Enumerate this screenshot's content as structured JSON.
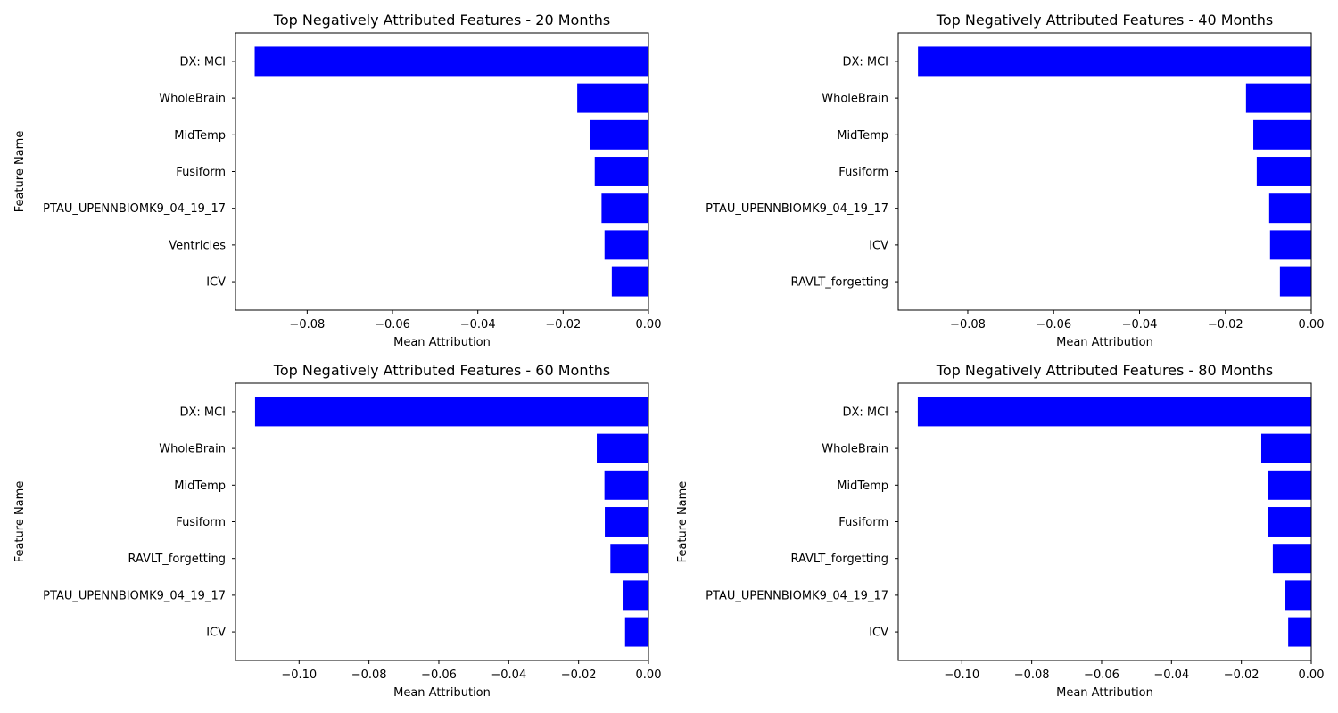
{
  "colors": {
    "bar": "#0000ff",
    "axis": "#000000",
    "background": "#ffffff"
  },
  "chart_data": [
    {
      "type": "bar",
      "orientation": "horizontal",
      "title": "Top Negatively Attributed Features - 20 Months",
      "xlabel": "Mean Attribution",
      "ylabel": "Feature Name",
      "categories": [
        "DX: MCI",
        "WholeBrain",
        "MidTemp",
        "Fusiform",
        "PTAU_UPENNBIOMK9_04_19_17",
        "Ventricles",
        "ICV"
      ],
      "values": [
        -0.0923,
        -0.0167,
        -0.0138,
        -0.0126,
        -0.011,
        -0.0103,
        -0.0086
      ],
      "xlim": [
        -0.0968,
        0.0
      ],
      "xticks": [
        -0.08,
        -0.06,
        -0.04,
        -0.02,
        0.0
      ],
      "xtick_labels": [
        "−0.08",
        "−0.06",
        "−0.04",
        "−0.02",
        "0.00"
      ],
      "grid": false
    },
    {
      "type": "bar",
      "orientation": "horizontal",
      "title": "Top Negatively Attributed Features - 40 Months",
      "xlabel": "Mean Attribution",
      "ylabel": "",
      "categories": [
        "DX: MCI",
        "WholeBrain",
        "MidTemp",
        "Fusiform",
        "PTAU_UPENNBIOMK9_04_19_17",
        "ICV",
        "RAVLT_forgetting"
      ],
      "values": [
        -0.0916,
        -0.0152,
        -0.0135,
        -0.0127,
        -0.0098,
        -0.0096,
        -0.0073
      ],
      "xlim": [
        -0.0962,
        0.0
      ],
      "xticks": [
        -0.08,
        -0.06,
        -0.04,
        -0.02,
        0.0
      ],
      "xtick_labels": [
        "−0.08",
        "−0.06",
        "−0.04",
        "−0.02",
        "0.00"
      ],
      "grid": false
    },
    {
      "type": "bar",
      "orientation": "horizontal",
      "title": "Top Negatively Attributed Features - 60 Months",
      "xlabel": "Mean Attribution",
      "ylabel": "Feature Name",
      "categories": [
        "DX: MCI",
        "WholeBrain",
        "MidTemp",
        "Fusiform",
        "RAVLT_forgetting",
        "PTAU_UPENNBIOMK9_04_19_17",
        "ICV"
      ],
      "values": [
        -0.1126,
        -0.0148,
        -0.0126,
        -0.0125,
        -0.0109,
        -0.0074,
        -0.0067
      ],
      "xlim": [
        -0.1182,
        0.0
      ],
      "xticks": [
        -0.1,
        -0.08,
        -0.06,
        -0.04,
        -0.02,
        0.0
      ],
      "xtick_labels": [
        "−0.10",
        "−0.08",
        "−0.06",
        "−0.04",
        "−0.02",
        "0.00"
      ],
      "grid": false
    },
    {
      "type": "bar",
      "orientation": "horizontal",
      "title": "Top Negatively Attributed Features - 80 Months",
      "xlabel": "Mean Attribution",
      "ylabel": "Feature Name",
      "categories": [
        "DX: MCI",
        "WholeBrain",
        "MidTemp",
        "Fusiform",
        "RAVLT_forgetting",
        "PTAU_UPENNBIOMK9_04_19_17",
        "ICV"
      ],
      "values": [
        -0.1126,
        -0.0143,
        -0.0125,
        -0.0124,
        -0.011,
        -0.0074,
        -0.0066
      ],
      "xlim": [
        -0.1182,
        0.0
      ],
      "xticks": [
        -0.1,
        -0.08,
        -0.06,
        -0.04,
        -0.02,
        0.0
      ],
      "xtick_labels": [
        "−0.10",
        "−0.08",
        "−0.06",
        "−0.04",
        "−0.02",
        "0.00"
      ],
      "grid": false
    }
  ]
}
